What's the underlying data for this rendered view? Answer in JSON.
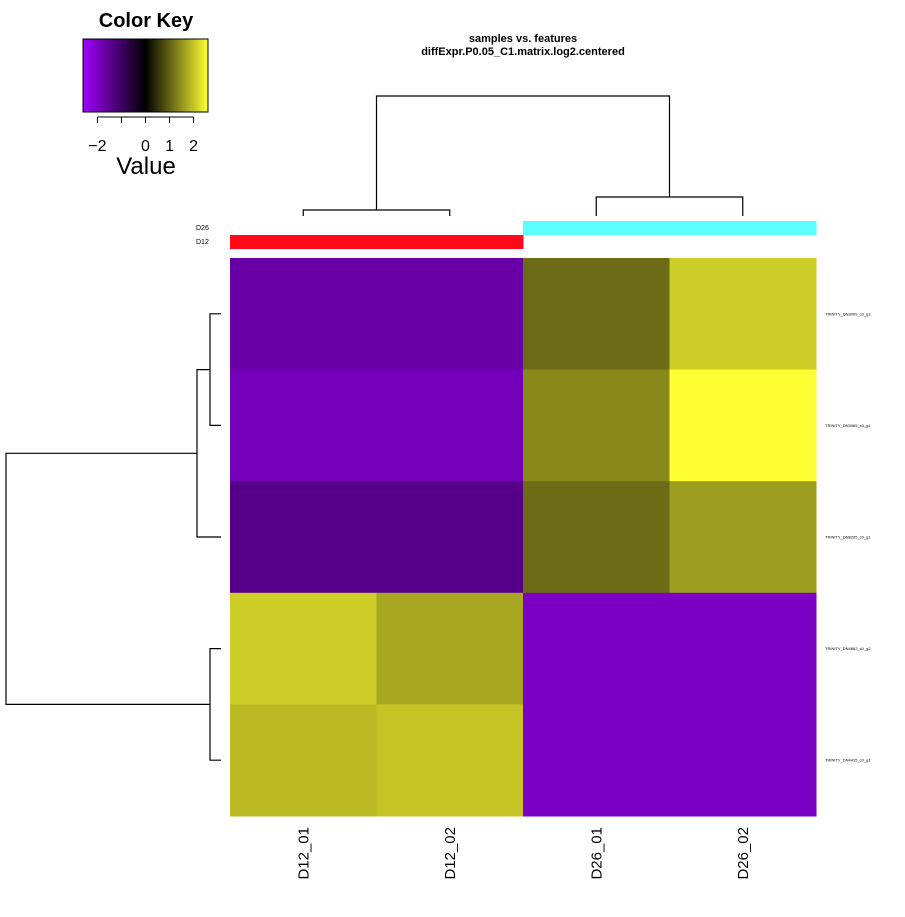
{
  "chart_data": {
    "type": "heatmap",
    "title": "samples vs. features",
    "subtitle": "diffExpr.P0.05_C1.matrix.log2.centered",
    "columns": [
      "D12_01",
      "D12_02",
      "D26_01",
      "D26_02"
    ],
    "rows": [
      "TRINITY_DN3009_c0_g2",
      "TRINITY_DN3065_c0_g1",
      "TRINITY_DN8205_c0_g1",
      "TRINITY_DN4862_c0_g2",
      "TRINITY_DN4415_c0_g1"
    ],
    "values": [
      [
        -1.7,
        -1.7,
        1.1,
        2.1
      ],
      [
        -1.9,
        -1.9,
        1.4,
        2.6
      ],
      [
        -1.4,
        -1.4,
        1.1,
        1.6
      ],
      [
        2.1,
        1.7,
        -2.0,
        -2.0
      ],
      [
        1.9,
        2.0,
        -2.0,
        -2.0
      ]
    ],
    "color_scale": {
      "min": -2.6,
      "max": 2.6,
      "stops": [
        "#a000ff",
        "#000000",
        "#ffff33"
      ]
    },
    "color_key": {
      "title": "Color Key",
      "xlabel": "Value",
      "tick_labels": [
        "−2",
        "0",
        "1",
        "2"
      ],
      "ticks": [
        -2,
        0,
        1,
        2
      ],
      "minor_ticks": [
        -1
      ]
    },
    "column_groups": {
      "labels": [
        "D26",
        "D12"
      ],
      "assignment": [
        "D12",
        "D12",
        "D26",
        "D26"
      ],
      "colors": {
        "D12": "#ff0a1a",
        "D26": "#5cffff"
      }
    },
    "column_dendrogram": {
      "merges": [
        [
          0,
          1
        ],
        [
          2,
          3
        ],
        [
          [
            0,
            1
          ],
          [
            2,
            3
          ]
        ]
      ]
    },
    "row_dendrogram": {
      "merges": [
        [
          0,
          1
        ],
        [
          [
            0,
            1
          ],
          2
        ],
        [
          3,
          4
        ],
        [
          [
            [
              0,
              1
            ],
            2
          ],
          [
            3,
            4
          ]
        ]
      ]
    }
  }
}
